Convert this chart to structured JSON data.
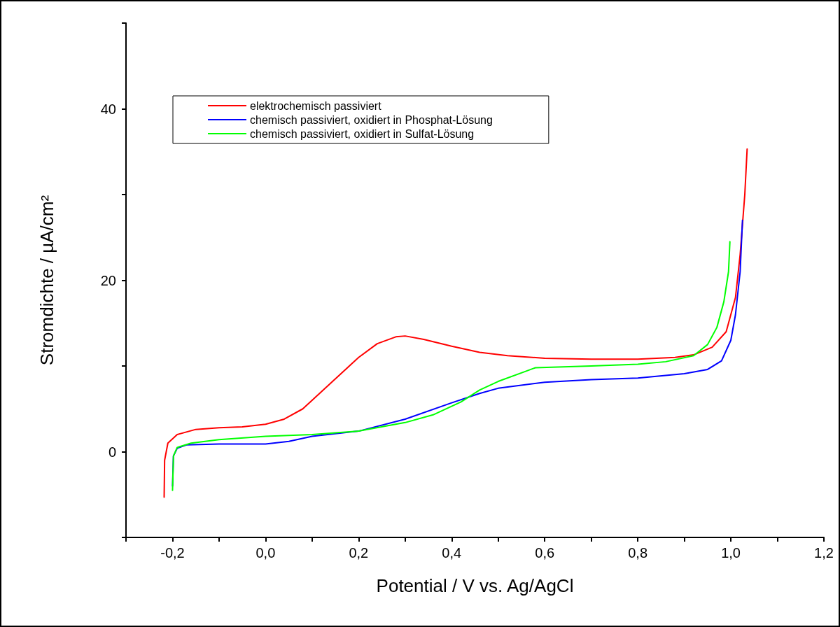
{
  "chart_data": {
    "type": "line",
    "xlabel": "Potential / V vs. Ag/AgCl",
    "ylabel": "Stromdichte / µA/cm²",
    "xlim": [
      -0.3,
      1.2
    ],
    "xticks": [
      {
        "value": -0.3,
        "label": null
      },
      {
        "value": -0.2,
        "label": "-0,2"
      },
      {
        "value": -0.1,
        "label": null
      },
      {
        "value": 0,
        "label": "0,0"
      },
      {
        "value": 0.1,
        "label": null
      },
      {
        "value": 0.2,
        "label": "0,2"
      },
      {
        "value": 0.3,
        "label": null
      },
      {
        "value": 0.4,
        "label": "0,4"
      },
      {
        "value": 0.5,
        "label": null
      },
      {
        "value": 0.6,
        "label": "0,6"
      },
      {
        "value": 0.7,
        "label": null
      },
      {
        "value": 0.8,
        "label": "0,8"
      },
      {
        "value": 0.9,
        "label": null
      },
      {
        "value": 1.0,
        "label": "1,0"
      },
      {
        "value": 1.1,
        "label": null
      },
      {
        "value": 1.2,
        "label": "1,2"
      }
    ],
    "ylim": [
      -10,
      50
    ],
    "yticks": [
      {
        "value": -10,
        "label": null
      },
      0,
      {
        "value": 10,
        "label": null
      },
      20,
      {
        "value": 30,
        "label": null
      },
      40,
      {
        "value": 50,
        "label": null
      }
    ],
    "grid": false,
    "legend": "top left",
    "marker": "none",
    "line_style": "solid",
    "series": [
      {
        "name": "elektrochemisch passiviert",
        "color": "#ff0000",
        "x": [
          -0.218,
          -0.217,
          -0.21,
          -0.19,
          -0.15,
          -0.1,
          -0.05,
          0,
          0.04,
          0.08,
          0.12,
          0.16,
          0.2,
          0.24,
          0.28,
          0.3,
          0.34,
          0.4,
          0.46,
          0.52,
          0.6,
          0.7,
          0.8,
          0.88,
          0.92,
          0.96,
          0.99,
          1.01,
          1.02,
          1.03,
          1.035
        ],
        "values": [
          -5.3,
          -1,
          1,
          2,
          2.6,
          2.8,
          2.9,
          3.2,
          3.8,
          5,
          7,
          9,
          11,
          12.6,
          13.4,
          13.5,
          13.1,
          12.3,
          11.6,
          11.2,
          10.9,
          10.8,
          10.8,
          11,
          11.3,
          12.2,
          14,
          18,
          23,
          30,
          35.3
        ]
      },
      {
        "name": "chemisch passiviert, oxidiert in Phosphat-Lösung",
        "color": "#0000ff",
        "x": [
          -0.2,
          -0.198,
          -0.19,
          -0.17,
          -0.1,
          0,
          0.05,
          0.1,
          0.2,
          0.3,
          0.4,
          0.46,
          0.5,
          0.6,
          0.7,
          0.8,
          0.9,
          0.95,
          0.98,
          1.0,
          1.01,
          1.02,
          1.025
        ],
        "values": [
          -4,
          -0.5,
          0.4,
          0.8,
          0.9,
          0.9,
          1.2,
          1.8,
          2.4,
          3.8,
          5.7,
          6.8,
          7.4,
          8.1,
          8.4,
          8.6,
          9.1,
          9.6,
          10.6,
          13,
          16,
          21,
          27
        ]
      },
      {
        "name": "chemisch passiviert, oxidiert in Sulfat-Lösung",
        "color": "#00ff00",
        "x": [
          -0.2,
          -0.198,
          -0.19,
          -0.16,
          -0.1,
          0,
          0.1,
          0.2,
          0.3,
          0.36,
          0.42,
          0.46,
          0.5,
          0.56,
          0.58,
          0.7,
          0.8,
          0.86,
          0.92,
          0.95,
          0.97,
          0.985,
          0.995,
          0.998
        ],
        "values": [
          -4.5,
          -0.5,
          0.5,
          1,
          1.4,
          1.8,
          2,
          2.4,
          3.4,
          4.3,
          5.8,
          7.2,
          8.2,
          9.4,
          9.8,
          10,
          10.2,
          10.5,
          11.2,
          12.5,
          14.5,
          17.5,
          21,
          24.5
        ]
      }
    ]
  }
}
